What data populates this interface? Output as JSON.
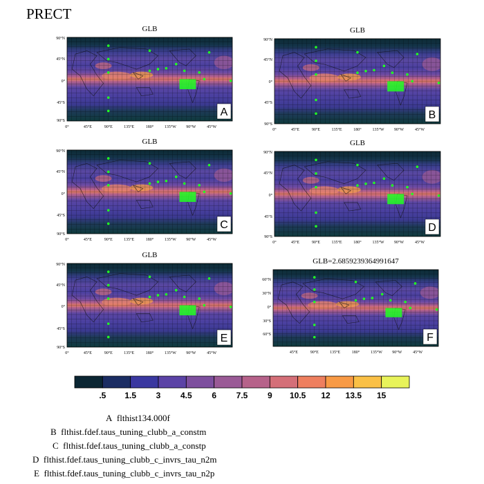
{
  "figure_title": "PRECT",
  "panels": [
    {
      "letter": "A",
      "title": "GLB",
      "lat_ticks": [
        "90°N",
        "45°N",
        "0°",
        "45°S",
        "90°S"
      ],
      "lon_ticks": [
        "0°",
        "45°E",
        "90°E",
        "135°E",
        "180°",
        "135°W",
        "90°W",
        "45°W"
      ]
    },
    {
      "letter": "B",
      "title": "GLB",
      "lat_ticks": [
        "90°N",
        "45°N",
        "0°",
        "45°S",
        "90°S"
      ],
      "lon_ticks": [
        "0°",
        "45°E",
        "90°E",
        "135°E",
        "180°",
        "135°W",
        "90°W",
        "45°W"
      ]
    },
    {
      "letter": "C",
      "title": "GLB",
      "lat_ticks": [
        "90°N",
        "45°N",
        "0°",
        "45°S",
        "90°S"
      ],
      "lon_ticks": [
        "0°",
        "45°E",
        "90°E",
        "135°E",
        "180°",
        "135°W",
        "90°W",
        "45°W"
      ]
    },
    {
      "letter": "D",
      "title": "GLB",
      "lat_ticks": [
        "90°N",
        "45°N",
        "0°",
        "45°S",
        "90°S"
      ],
      "lon_ticks": [
        "0°",
        "45°E",
        "90°E",
        "135°E",
        "180°",
        "135°W",
        "90°W",
        "45°W"
      ]
    },
    {
      "letter": "E",
      "title": "GLB",
      "lat_ticks": [
        "90°N",
        "45°N",
        "0°",
        "45°S",
        "90°S"
      ],
      "lon_ticks": [
        "0°",
        "45°E",
        "90°E",
        "135°E",
        "180°",
        "135°W",
        "90°W",
        "45°W"
      ]
    },
    {
      "letter": "F",
      "title": "GLB=2.6859239364991647",
      "lat_ticks": [
        "60°N",
        "30°N",
        "0°",
        "30°S",
        "60°S"
      ],
      "lon_ticks": [
        "45°E",
        "90°E",
        "135°E",
        "180°",
        "135°W",
        "90°W",
        "45°W"
      ]
    }
  ],
  "colorbar": {
    "colors": [
      "#0b2633",
      "#1b2d63",
      "#3a38a0",
      "#5b43a6",
      "#7d4f9e",
      "#9a5a96",
      "#b6628a",
      "#d46f78",
      "#ee7f5f",
      "#f89a45",
      "#fac046",
      "#e8f35a"
    ],
    "labels": [
      ".5",
      "1.5",
      "3",
      "4.5",
      "6",
      "7.5",
      "9",
      "10.5",
      "12",
      "13.5",
      "15"
    ]
  },
  "legend": [
    {
      "letter": "A",
      "name": "flthist134.000f"
    },
    {
      "letter": "B",
      "name": "flthist.fdef.taus_tuning_clubb_a_constm"
    },
    {
      "letter": "C",
      "name": "flthist.fdef.taus_tuning_clubb_a_constp"
    },
    {
      "letter": "D",
      "name": "flthist.fdef.taus_tuning_clubb_c_invrs_tau_n2m"
    },
    {
      "letter": "E",
      "name": "flthist.fdef.taus_tuning_clubb_c_invrs_tau_n2p"
    }
  ],
  "chart_data": {
    "type": "heatmap",
    "variable": "PRECT",
    "grid_lines": true,
    "colorbar_boundaries": [
      0.5,
      1.5,
      3,
      4.5,
      6,
      7.5,
      9,
      10.5,
      12,
      13.5,
      15
    ],
    "marker_color": "#22ff22",
    "global_mean_F": 2.6859239364991647
  }
}
